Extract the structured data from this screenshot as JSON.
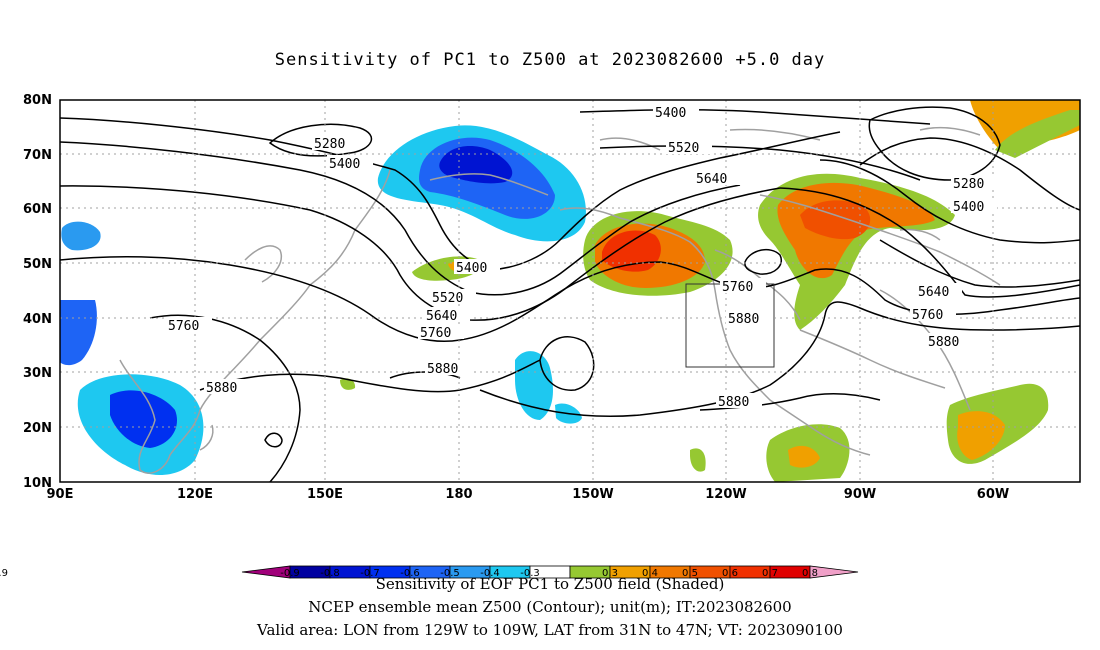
{
  "title": "Sensitivity of PC1 to Z500 at 2023082600 +5.0 day",
  "lon_labels": [
    "90E",
    "120E",
    "150E",
    "180",
    "150W",
    "120W",
    "90W",
    "60W"
  ],
  "lat_labels": [
    "80N",
    "70N",
    "60N",
    "50N",
    "40N",
    "30N",
    "20N",
    "10N"
  ],
  "contour_labels": [
    "5280",
    "5400",
    "5400",
    "5520",
    "5640",
    "5280",
    "5400",
    "5400",
    "5520",
    "5640",
    "5760",
    "5760",
    "5760",
    "5640",
    "5760",
    "5880",
    "5880",
    "5880",
    "5880",
    "5880"
  ],
  "colorbar": {
    "ticks": [
      "-0.9",
      "-0.8",
      "-0.7",
      "-0.6",
      "-0.5",
      "-0.4",
      "-0.3",
      "0.3",
      "0.4",
      "0.5",
      "0.6",
      "0.7",
      "0.8",
      "0.9"
    ],
    "colors": [
      "#a0007a",
      "#0000a0",
      "#0014d2",
      "#0030f0",
      "#1e64f5",
      "#2a9af0",
      "#1ec8f0",
      "#ffffff",
      "#96c832",
      "#f0a000",
      "#f07800",
      "#f05000",
      "#f03000",
      "#e00000",
      "#f0a0c8"
    ]
  },
  "caption_lines": [
    "Sensitivity of EOF PC1 to Z500 field (Shaded)",
    "NCEP ensemble mean Z500 (Contour); unit(m); IT:2023082600",
    "Valid area: LON from 129W to 109W, LAT from 31N to 47N; VT: 2023090100"
  ]
}
